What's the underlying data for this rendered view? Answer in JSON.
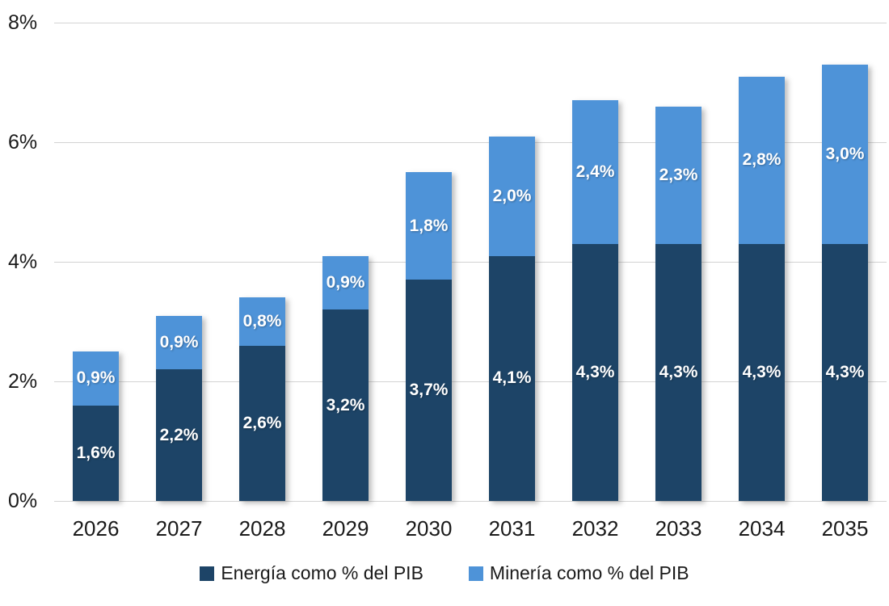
{
  "chart_data": {
    "type": "bar",
    "stacked": true,
    "title": "",
    "xlabel": "",
    "ylabel": "",
    "categories": [
      "2026",
      "2027",
      "2028",
      "2029",
      "2030",
      "2031",
      "2032",
      "2033",
      "2034",
      "2035"
    ],
    "series": [
      {
        "name": "Energía como % del PIB",
        "color": "#1D4467",
        "values": [
          1.6,
          2.2,
          2.6,
          3.2,
          3.7,
          4.1,
          4.3,
          4.3,
          4.3,
          4.3
        ],
        "labels": [
          "1,6%",
          "2,2%",
          "2,6%",
          "3,2%",
          "3,7%",
          "4,1%",
          "4,3%",
          "4,3%",
          "4,3%",
          "4,3%"
        ]
      },
      {
        "name": "Minería como % del PIB",
        "color": "#4E93D8",
        "values": [
          0.9,
          0.9,
          0.8,
          0.9,
          1.8,
          2.0,
          2.4,
          2.3,
          2.8,
          3.0
        ],
        "labels": [
          "0,9%",
          "0,9%",
          "0,8%",
          "0,9%",
          "1,8%",
          "2,0%",
          "2,4%",
          "2,3%",
          "2,8%",
          "3,0%"
        ]
      }
    ],
    "ylim": [
      0,
      8
    ],
    "yticks": [
      {
        "value": 0,
        "label": "0%"
      },
      {
        "value": 2,
        "label": "2%"
      },
      {
        "value": 4,
        "label": "4%"
      },
      {
        "value": 6,
        "label": "6%"
      },
      {
        "value": 8,
        "label": "8%"
      }
    ],
    "grid": true,
    "gridline_color": "#d3d3d3",
    "label_text_color": "#ffffff",
    "legend_position": "bottom"
  }
}
